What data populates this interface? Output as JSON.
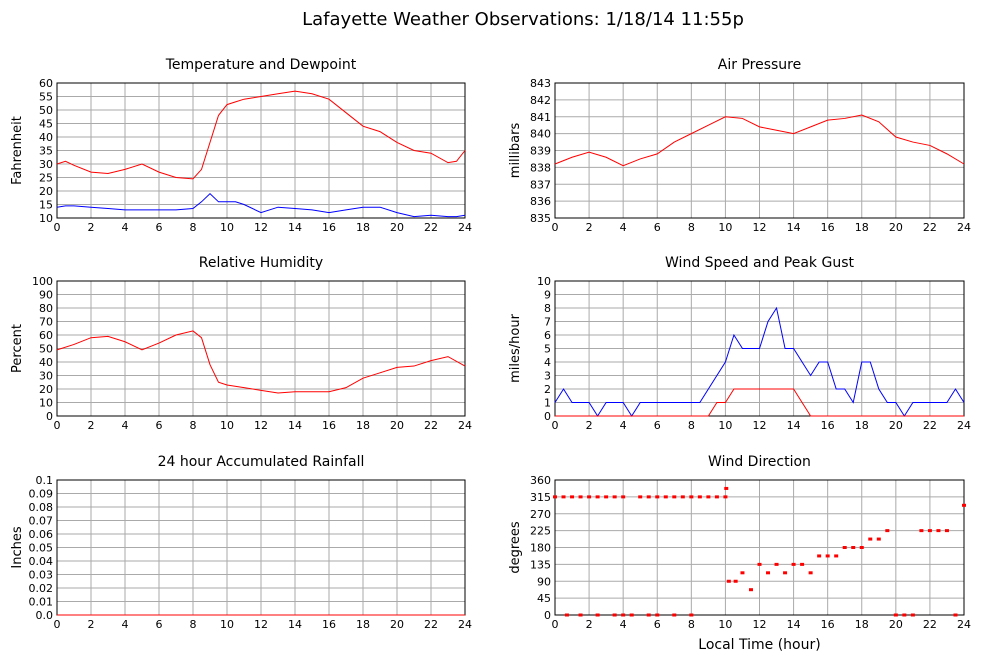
{
  "title": "Lafayette Weather Observations: 1/18/14 11:55p",
  "chart_data": [
    {
      "type": "line",
      "title": "Temperature and Dewpoint",
      "y_label": "Fahrenheit",
      "grid": true,
      "x": [
        0,
        0.5,
        1,
        2,
        3,
        4,
        5,
        6,
        7,
        8,
        8.5,
        9,
        9.5,
        10,
        10.5,
        11,
        12,
        13,
        14,
        15,
        16,
        17,
        18,
        19,
        20,
        21,
        22,
        23,
        23.5,
        24
      ],
      "series": [
        {
          "name": "Temperature",
          "color": "#ff0000",
          "values": [
            30,
            31,
            29.5,
            27,
            26.5,
            28,
            30,
            27,
            25,
            24.5,
            28,
            38,
            48,
            52,
            53,
            54,
            55,
            56,
            57,
            56,
            54,
            49,
            44,
            42,
            38,
            35,
            34,
            30.5,
            31,
            35
          ]
        },
        {
          "name": "Dewpoint",
          "color": "#0000ff",
          "values": [
            14,
            14.5,
            14.5,
            14,
            13.5,
            13,
            13,
            13,
            13,
            13.5,
            16,
            19,
            16,
            16,
            16,
            15,
            12,
            14,
            13.5,
            13,
            12,
            13,
            14,
            14,
            12,
            10.5,
            11,
            10.5,
            10.5,
            11
          ]
        }
      ],
      "xlim": [
        0,
        24
      ],
      "xticks": [
        0,
        2,
        4,
        6,
        8,
        10,
        12,
        14,
        16,
        18,
        20,
        22,
        24
      ],
      "ylim": [
        10,
        60
      ],
      "yticks": [
        10,
        15,
        20,
        25,
        30,
        35,
        40,
        45,
        50,
        55,
        60
      ]
    },
    {
      "type": "line",
      "title": "Air Pressure",
      "y_label": "millibars",
      "grid": true,
      "x": [
        0,
        1,
        2,
        3,
        4,
        5,
        6,
        7,
        8,
        9,
        10,
        11,
        12,
        13,
        14,
        15,
        16,
        17,
        18,
        19,
        20,
        21,
        22,
        23,
        24
      ],
      "series": [
        {
          "name": "Pressure",
          "color": "#ff0000",
          "values": [
            838.2,
            838.6,
            838.9,
            838.6,
            838.1,
            838.5,
            838.8,
            839.5,
            840.0,
            840.5,
            841.0,
            840.9,
            840.4,
            840.2,
            840.0,
            840.4,
            840.8,
            840.9,
            841.1,
            840.7,
            839.8,
            839.5,
            839.3,
            838.8,
            838.2
          ]
        }
      ],
      "xlim": [
        0,
        24
      ],
      "xticks": [
        0,
        2,
        4,
        6,
        8,
        10,
        12,
        14,
        16,
        18,
        20,
        22,
        24
      ],
      "ylim": [
        835,
        843
      ],
      "yticks": [
        835,
        836,
        837,
        838,
        839,
        840,
        841,
        842,
        843
      ]
    },
    {
      "type": "line",
      "title": "Relative Humidity",
      "y_label": "Percent",
      "grid": true,
      "x": [
        0,
        1,
        2,
        3,
        4,
        5,
        6,
        7,
        8,
        8.5,
        9,
        9.5,
        10,
        11,
        12,
        13,
        14,
        15,
        16,
        17,
        18,
        19,
        20,
        21,
        22,
        23,
        24
      ],
      "series": [
        {
          "name": "Humidity",
          "color": "#ff0000",
          "values": [
            49,
            53,
            58,
            59,
            55,
            49,
            54,
            60,
            63,
            58,
            38,
            25,
            23,
            21,
            19,
            17,
            18,
            18,
            18,
            21,
            28,
            32,
            36,
            37,
            41,
            44,
            37
          ]
        }
      ],
      "xlim": [
        0,
        24
      ],
      "xticks": [
        0,
        2,
        4,
        6,
        8,
        10,
        12,
        14,
        16,
        18,
        20,
        22,
        24
      ],
      "ylim": [
        0,
        100
      ],
      "yticks": [
        0,
        10,
        20,
        30,
        40,
        50,
        60,
        70,
        80,
        90,
        100
      ]
    },
    {
      "type": "line",
      "title": "Wind Speed and Peak Gust",
      "y_label": "miles/hour",
      "grid": true,
      "x": [
        0,
        0.5,
        1,
        1.5,
        2,
        2.5,
        3,
        3.5,
        4,
        4.5,
        5,
        5.5,
        6,
        6.5,
        7,
        7.5,
        8,
        8.5,
        9,
        9.5,
        10,
        10.5,
        11,
        11.5,
        12,
        12.5,
        13,
        13.5,
        14,
        14.5,
        15,
        15.5,
        16,
        16.5,
        17,
        17.5,
        18,
        18.5,
        19,
        19.5,
        20,
        20.5,
        21,
        21.5,
        22,
        22.5,
        23,
        23.5,
        24
      ],
      "series": [
        {
          "name": "Wind Speed",
          "color": "#0000ff",
          "values": [
            1,
            2,
            1,
            1,
            1,
            0,
            1,
            1,
            1,
            0,
            1,
            1,
            1,
            1,
            1,
            1,
            1,
            1,
            2,
            3,
            4,
            6,
            5,
            5,
            5,
            7,
            8,
            5,
            5,
            4,
            3,
            4,
            4,
            2,
            2,
            1,
            4,
            4,
            2,
            1,
            1,
            0,
            1,
            1,
            1,
            1,
            1,
            2,
            1
          ]
        },
        {
          "name": "Peak Gust",
          "color": "#ff0000",
          "values": [
            0,
            0,
            0,
            0,
            0,
            0,
            0,
            0,
            0,
            0,
            0,
            0,
            0,
            0,
            0,
            0,
            0,
            0,
            0,
            1,
            1,
            2,
            2,
            2,
            2,
            2,
            2,
            2,
            2,
            1,
            0,
            0,
            0,
            0,
            0,
            0,
            0,
            0,
            0,
            0,
            0,
            0,
            0,
            0,
            0,
            0,
            0,
            0,
            0
          ]
        }
      ],
      "xlim": [
        0,
        24
      ],
      "xticks": [
        0,
        2,
        4,
        6,
        8,
        10,
        12,
        14,
        16,
        18,
        20,
        22,
        24
      ],
      "ylim": [
        0,
        10
      ],
      "yticks": [
        0,
        1,
        2,
        3,
        4,
        5,
        6,
        7,
        8,
        9,
        10
      ]
    },
    {
      "type": "line",
      "title": "24 hour Accumulated Rainfall",
      "y_label": "Inches",
      "grid": true,
      "x": [
        0,
        24
      ],
      "series": [
        {
          "name": "Rainfall",
          "color": "#ff0000",
          "values": [
            0,
            0
          ]
        }
      ],
      "xlim": [
        0,
        24
      ],
      "xticks": [
        0,
        2,
        4,
        6,
        8,
        10,
        12,
        14,
        16,
        18,
        20,
        22,
        24
      ],
      "ylim": [
        0,
        0.1
      ],
      "yticks": [
        {
          "value": 0,
          "label": "0.0"
        },
        0.01,
        0.02,
        0.03,
        0.04,
        0.05,
        0.06,
        0.07,
        0.08,
        0.09,
        0.1
      ]
    },
    {
      "type": "scatter",
      "title": "Wind Direction",
      "y_label": "degrees",
      "x_label": "Local Time (hour)",
      "grid": true,
      "series": [
        {
          "name": "Direction",
          "color": "#ff0000",
          "x": [
            0,
            0.5,
            1,
            1.5,
            2,
            2.5,
            3,
            3.5,
            4,
            5,
            5.5,
            6,
            6.5,
            7,
            7.5,
            8,
            8.5,
            9,
            9.5,
            10,
            10.05,
            0.7,
            1.5,
            2.5,
            3.5,
            4,
            4.5,
            5.5,
            6,
            7,
            8,
            10.2,
            10.6,
            11,
            11.5,
            12,
            12.5,
            13,
            13.5,
            14,
            14.5,
            15,
            15.5,
            16,
            16.5,
            17,
            17.5,
            18,
            18.5,
            19,
            19.5,
            20,
            20.5,
            21,
            21.5,
            22,
            22.5,
            23,
            23.5,
            24
          ],
          "values": [
            315,
            315,
            315,
            315,
            315,
            315,
            315,
            315,
            315,
            315,
            315,
            315,
            315,
            315,
            315,
            315,
            315,
            315,
            315,
            315,
            337.5,
            0,
            0,
            0,
            0,
            0,
            0,
            0,
            0,
            0,
            0,
            90,
            90,
            112.5,
            67.5,
            135,
            112.5,
            135,
            112.5,
            135,
            135,
            112.5,
            157.5,
            157.5,
            157.5,
            180,
            180,
            180,
            202.5,
            202.5,
            225,
            0,
            0,
            0,
            225,
            225,
            225,
            225,
            0,
            292.5
          ]
        }
      ],
      "xlim": [
        0,
        24
      ],
      "xticks": [
        0,
        2,
        4,
        6,
        8,
        10,
        12,
        14,
        16,
        18,
        20,
        22,
        24
      ],
      "ylim": [
        0,
        360
      ],
      "yticks": [
        0,
        45,
        90,
        135,
        180,
        225,
        270,
        315,
        360
      ]
    }
  ]
}
